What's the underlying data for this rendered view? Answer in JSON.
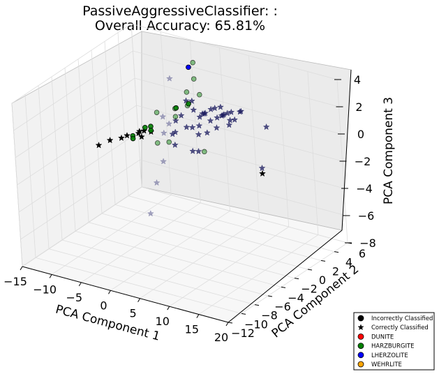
{
  "chart_data": {
    "type": "scatter",
    "projection": "3d",
    "title": "PassiveAggressiveClassifier: :",
    "subtitle": "Overall Accuracy: 65.81%",
    "xlabel": "PCA Component 1",
    "ylabel": "PCA Component 2",
    "zlabel": "PCA Component 3",
    "xlim": [
      -15,
      20
    ],
    "ylim": [
      -12,
      6
    ],
    "zlim": [
      -8,
      4
    ],
    "x_ticks": [
      "−15",
      "−10",
      "−5",
      "0",
      "5",
      "10",
      "15",
      "20"
    ],
    "y_ticks": [
      "−12",
      "−10",
      "−8",
      "−6",
      "−4",
      "−2",
      "0",
      "2",
      "4",
      "6"
    ],
    "z_ticks": [
      "−8",
      "−6",
      "−4",
      "−2",
      "0",
      "2",
      "4"
    ],
    "grid": true,
    "legend_position": "bottom-right",
    "legend": [
      {
        "label": "Incorrectly Classified",
        "marker": "circle",
        "color": "#000000"
      },
      {
        "label": "Correctly Classified",
        "marker": "star",
        "color": "#000000"
      },
      {
        "label": "DUNITE",
        "marker": "circle",
        "color": "#ff0000"
      },
      {
        "label": "HARZBURGITE",
        "marker": "circle",
        "color": "#008000"
      },
      {
        "label": "LHERZOLITE",
        "marker": "circle",
        "color": "#0000ff"
      },
      {
        "label": "WEHRLITE",
        "marker": "circle",
        "color": "#ffa500"
      }
    ],
    "series": [
      {
        "marker": "star",
        "color": "#000000",
        "alpha": 1.0,
        "points": [
          [
            -10,
            -4,
            -1.1
          ],
          [
            -8,
            -4,
            -0.5
          ],
          [
            -6,
            -4,
            -0.1
          ],
          [
            -5,
            -4,
            0.2
          ],
          [
            -3,
            -4,
            0.6
          ],
          [
            -2,
            -4,
            0.9
          ],
          [
            -2,
            -3,
            0.5
          ],
          [
            -4,
            -3,
            0.3
          ],
          [
            -2.5,
            -4,
            0.4
          ],
          [
            18,
            -4,
            0.1
          ]
        ]
      },
      {
        "marker": "star",
        "color": "#1a1a5e",
        "alpha": 0.75,
        "points": [
          [
            2,
            -1,
            2.6
          ],
          [
            3,
            -1,
            2.7
          ],
          [
            5,
            -1,
            2.0
          ],
          [
            6,
            -1,
            1.6
          ],
          [
            4,
            0,
            1.6
          ],
          [
            5,
            0,
            2.0
          ],
          [
            6,
            0,
            1.5
          ],
          [
            7,
            0,
            1.8
          ],
          [
            3,
            0,
            1.2
          ],
          [
            4,
            -1,
            1.0
          ],
          [
            2,
            0,
            1.6
          ],
          [
            8,
            0,
            1.2
          ],
          [
            9,
            0,
            1.7
          ],
          [
            8,
            -1,
            2.2
          ],
          [
            6,
            1,
            1.4
          ],
          [
            5,
            -2,
            0.8
          ],
          [
            4,
            -2,
            1.2
          ],
          [
            3,
            -2,
            1.1
          ],
          [
            1,
            -1,
            1.4
          ],
          [
            1,
            -2,
            0.5
          ],
          [
            0.5,
            -2,
            0.3
          ],
          [
            9,
            1,
            2.0
          ],
          [
            7,
            1,
            1.1
          ],
          [
            4.5,
            1,
            1.7
          ],
          [
            5.5,
            1,
            1.9
          ],
          [
            0,
            -1,
            0.9
          ],
          [
            7,
            -1,
            1.2
          ],
          [
            8.5,
            0,
            2.2
          ],
          [
            6.5,
            -2,
            1.1
          ],
          [
            3.5,
            0,
            1.5
          ],
          [
            10,
            0,
            2.4
          ],
          [
            9,
            -1,
            2.5
          ],
          [
            5,
            -3,
            -0.1
          ],
          [
            6,
            -3,
            0.0
          ],
          [
            2,
            -3,
            0.0
          ],
          [
            18,
            -3,
            3.2
          ],
          [
            18,
            -4,
            0.5
          ]
        ]
      },
      {
        "marker": "star",
        "color": "#6b6b99",
        "alpha": 0.6,
        "points": [
          [
            -3,
            1,
            3.0
          ],
          [
            -1,
            -2,
            1.4
          ],
          [
            1,
            -4,
            -1.0
          ],
          [
            2,
            -6,
            -1.8
          ],
          [
            3,
            -8,
            -3.3
          ],
          [
            -1,
            -2,
            0.2
          ],
          [
            0,
            -2,
            1.0
          ]
        ]
      },
      {
        "marker": "circle",
        "color": "#008000",
        "alpha": 0.45,
        "points": [
          [
            0,
            2,
            3.0
          ],
          [
            1,
            0,
            2.8
          ],
          [
            0,
            2,
            4.2
          ],
          [
            1,
            0,
            1.8
          ],
          [
            0,
            -1,
            1.8
          ],
          [
            -2,
            -2,
            1.6
          ],
          [
            0,
            -1,
            1.2
          ],
          [
            1,
            -3,
            0.1
          ],
          [
            -1,
            -3,
            -0.2
          ],
          [
            7,
            -3,
            0.1
          ],
          [
            2,
            1,
            2.4
          ]
        ]
      },
      {
        "marker": "circle",
        "color": "#008000",
        "alpha": 0.9,
        "points": [
          [
            -2,
            -3,
            0.9
          ],
          [
            -2,
            -3,
            0.6
          ],
          [
            -3,
            -3,
            0.7
          ],
          [
            -4,
            -4,
            0.3
          ],
          [
            -4,
            -4,
            0.1
          ],
          [
            -1,
            0,
            1.4
          ],
          [
            0,
            1,
            1.5
          ]
        ]
      },
      {
        "marker": "circle",
        "color": "#0000ff",
        "alpha": 1.0,
        "points": [
          [
            -2,
            3,
            3.3
          ]
        ]
      }
    ]
  }
}
